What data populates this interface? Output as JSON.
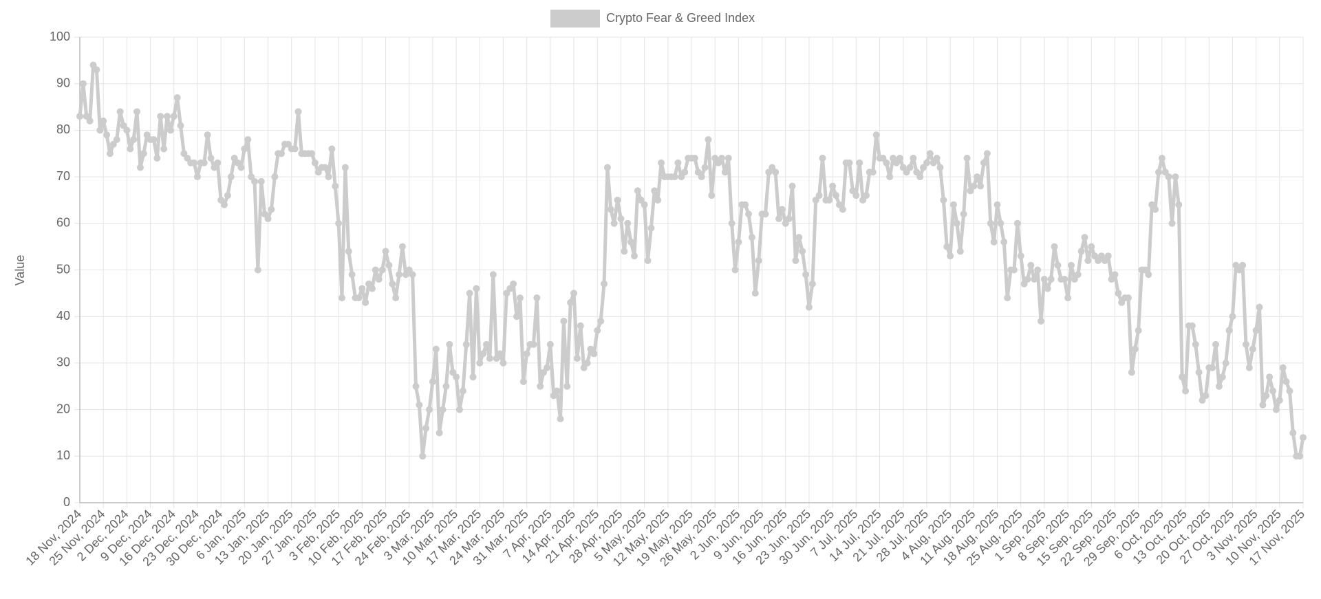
{
  "chart_data": {
    "type": "line",
    "y_label": "Value",
    "ylim": [
      0,
      100
    ],
    "yticks": [
      0,
      10,
      20,
      30,
      40,
      50,
      60,
      70,
      80,
      90,
      100
    ],
    "grid": true,
    "legend": "top",
    "categories": [
      "18 Nov, 2024",
      null,
      null,
      null,
      null,
      null,
      null,
      "25 Nov, 2024",
      null,
      null,
      null,
      null,
      null,
      null,
      "2 Dec, 2024",
      null,
      null,
      null,
      null,
      null,
      null,
      "9 Dec, 2024",
      null,
      null,
      null,
      null,
      null,
      null,
      "16 Dec, 2024",
      null,
      null,
      null,
      null,
      null,
      null,
      "23 Dec, 2024",
      null,
      null,
      null,
      null,
      null,
      null,
      "30 Dec, 2024",
      null,
      null,
      null,
      null,
      null,
      null,
      "6 Jan, 2025",
      null,
      null,
      null,
      null,
      null,
      null,
      "13 Jan, 2025",
      null,
      null,
      null,
      null,
      null,
      null,
      "20 Jan, 2025",
      null,
      null,
      null,
      null,
      null,
      null,
      "27 Jan, 2025",
      null,
      null,
      null,
      null,
      null,
      null,
      "3 Feb, 2025",
      null,
      null,
      null,
      null,
      null,
      null,
      "10 Feb, 2025",
      null,
      null,
      null,
      null,
      null,
      null,
      "17 Feb, 2025",
      null,
      null,
      null,
      null,
      null,
      null,
      "24 Feb, 2025",
      null,
      null,
      null,
      null,
      null,
      null,
      "3 Mar, 2025",
      null,
      null,
      null,
      null,
      null,
      null,
      "10 Mar, 2025",
      null,
      null,
      null,
      null,
      null,
      null,
      "17 Mar, 2025",
      null,
      null,
      null,
      null,
      null,
      null,
      "24 Mar, 2025",
      null,
      null,
      null,
      null,
      null,
      null,
      "31 Mar, 2025",
      null,
      null,
      null,
      null,
      null,
      null,
      "7 Apr, 2025",
      null,
      null,
      null,
      null,
      null,
      null,
      "14 Apr, 2025",
      null,
      null,
      null,
      null,
      null,
      null,
      "21 Apr, 2025",
      null,
      null,
      null,
      null,
      null,
      null,
      "28 Apr, 2025",
      null,
      null,
      null,
      null,
      null,
      null,
      "5 May, 2025",
      null,
      null,
      null,
      null,
      null,
      null,
      "12 May, 2025",
      null,
      null,
      null,
      null,
      null,
      null,
      "19 May, 2025",
      null,
      null,
      null,
      null,
      null,
      null,
      "26 May, 2025",
      null,
      null,
      null,
      null,
      null,
      null,
      "2 Jun, 2025",
      null,
      null,
      null,
      null,
      null,
      null,
      "9 Jun, 2025",
      null,
      null,
      null,
      null,
      null,
      null,
      "16 Jun, 2025",
      null,
      null,
      null,
      null,
      null,
      null,
      "23 Jun, 2025",
      null,
      null,
      null,
      null,
      null,
      null,
      "30 Jun, 2025",
      null,
      null,
      null,
      null,
      null,
      null,
      "7 Jul, 2025",
      null,
      null,
      null,
      null,
      null,
      null,
      "14 Jul, 2025",
      null,
      null,
      null,
      null,
      null,
      null,
      "21 Jul, 2025",
      null,
      null,
      null,
      null,
      null,
      null,
      "28 Jul, 2025",
      null,
      null,
      null,
      null,
      null,
      null,
      "4 Aug, 2025",
      null,
      null,
      null,
      null,
      null,
      null,
      "11 Aug, 2025",
      null,
      null,
      null,
      null,
      null,
      null,
      "18 Aug, 2025",
      null,
      null,
      null,
      null,
      null,
      null,
      "25 Aug, 2025",
      null,
      null,
      null,
      null,
      null,
      null,
      "1 Sep, 2025",
      null,
      null,
      null,
      null,
      null,
      null,
      "8 Sep, 2025",
      null,
      null,
      null,
      null,
      null,
      null,
      "15 Sep, 2025",
      null,
      null,
      null,
      null,
      null,
      null,
      "22 Sep, 2025",
      null,
      null,
      null,
      null,
      null,
      null,
      "29 Sep, 2025",
      null,
      null,
      null,
      null,
      null,
      null,
      "6 Oct, 2025",
      null,
      null,
      null,
      null,
      null,
      null,
      "13 Oct, 2025",
      null,
      null,
      null,
      null,
      null,
      null,
      "20 Oct, 2025",
      null,
      null,
      null,
      null,
      null,
      null,
      "27 Oct, 2025",
      null,
      null,
      null,
      null,
      null,
      null,
      "3 Nov, 2025",
      null,
      null,
      null,
      null,
      null,
      null,
      "10 Nov, 2025",
      null,
      null,
      null,
      null,
      null,
      null,
      "17 Nov, 2025"
    ],
    "series": [
      {
        "name": "Crypto Fear & Greed Index",
        "color": "#cccccc",
        "values": [
          83,
          90,
          83,
          82,
          94,
          93,
          80,
          82,
          79,
          75,
          77,
          78,
          84,
          81,
          80,
          76,
          78,
          84,
          72,
          75,
          79,
          78,
          78,
          74,
          83,
          76,
          83,
          80,
          83,
          87,
          81,
          75,
          74,
          73,
          73,
          70,
          73,
          73,
          79,
          74,
          72,
          73,
          65,
          64,
          66,
          70,
          74,
          73,
          72,
          76,
          78,
          70,
          69,
          50,
          69,
          62,
          61,
          63,
          70,
          75,
          75,
          77,
          77,
          76,
          76,
          84,
          75,
          75,
          75,
          75,
          73,
          71,
          72,
          72,
          70,
          76,
          68,
          60,
          44,
          72,
          54,
          49,
          44,
          44,
          46,
          43,
          47,
          46,
          50,
          48,
          50,
          54,
          51,
          47,
          44,
          49,
          55,
          49,
          50,
          49,
          25,
          21,
          10,
          16,
          20,
          26,
          33,
          15,
          20,
          25,
          34,
          28,
          27,
          20,
          24,
          34,
          45,
          27,
          46,
          30,
          32,
          34,
          31,
          49,
          31,
          32,
          30,
          45,
          46,
          47,
          40,
          44,
          26,
          32,
          34,
          34,
          44,
          25,
          28,
          29,
          34,
          23,
          24,
          18,
          39,
          25,
          43,
          45,
          31,
          38,
          29,
          30,
          33,
          32,
          37,
          39,
          47,
          72,
          63,
          60,
          65,
          61,
          54,
          60,
          56,
          53,
          67,
          65,
          64,
          52,
          59,
          67,
          65,
          73,
          70,
          70,
          70,
          70,
          73,
          70,
          71,
          74,
          74,
          74,
          71,
          70,
          72,
          78,
          66,
          74,
          73,
          74,
          71,
          74,
          60,
          50,
          56,
          64,
          64,
          62,
          57,
          45,
          52,
          62,
          62,
          71,
          72,
          71,
          61,
          63,
          60,
          61,
          68,
          52,
          57,
          54,
          49,
          42,
          47,
          65,
          66,
          74,
          65,
          65,
          68,
          66,
          64,
          63,
          73,
          73,
          67,
          66,
          73,
          65,
          66,
          71,
          71,
          79,
          74,
          74,
          73,
          70,
          74,
          73,
          74,
          72,
          71,
          72,
          74,
          71,
          70,
          72,
          73,
          75,
          73,
          74,
          72,
          65,
          55,
          53,
          64,
          60,
          54,
          62,
          74,
          67,
          68,
          70,
          68,
          73,
          75,
          60,
          56,
          64,
          60,
          56,
          44,
          50,
          50,
          60,
          53,
          47,
          48,
          51,
          48,
          50,
          39,
          48,
          46,
          48,
          55,
          51,
          48,
          48,
          44,
          51,
          48,
          49,
          54,
          57,
          52,
          55,
          53,
          52,
          53,
          52,
          53,
          48,
          49,
          45,
          43,
          44,
          44,
          28,
          33,
          37,
          50,
          50,
          49,
          64,
          63,
          71,
          74,
          71,
          70,
          60,
          70,
          64,
          27,
          24,
          38,
          38,
          34,
          28,
          22,
          23,
          29,
          29,
          34,
          25,
          27,
          30,
          37,
          40,
          51,
          50,
          51,
          34,
          29,
          33,
          37,
          42,
          21,
          23,
          27,
          24,
          20,
          22,
          29,
          26,
          24,
          15,
          10,
          10,
          14
        ]
      }
    ]
  }
}
